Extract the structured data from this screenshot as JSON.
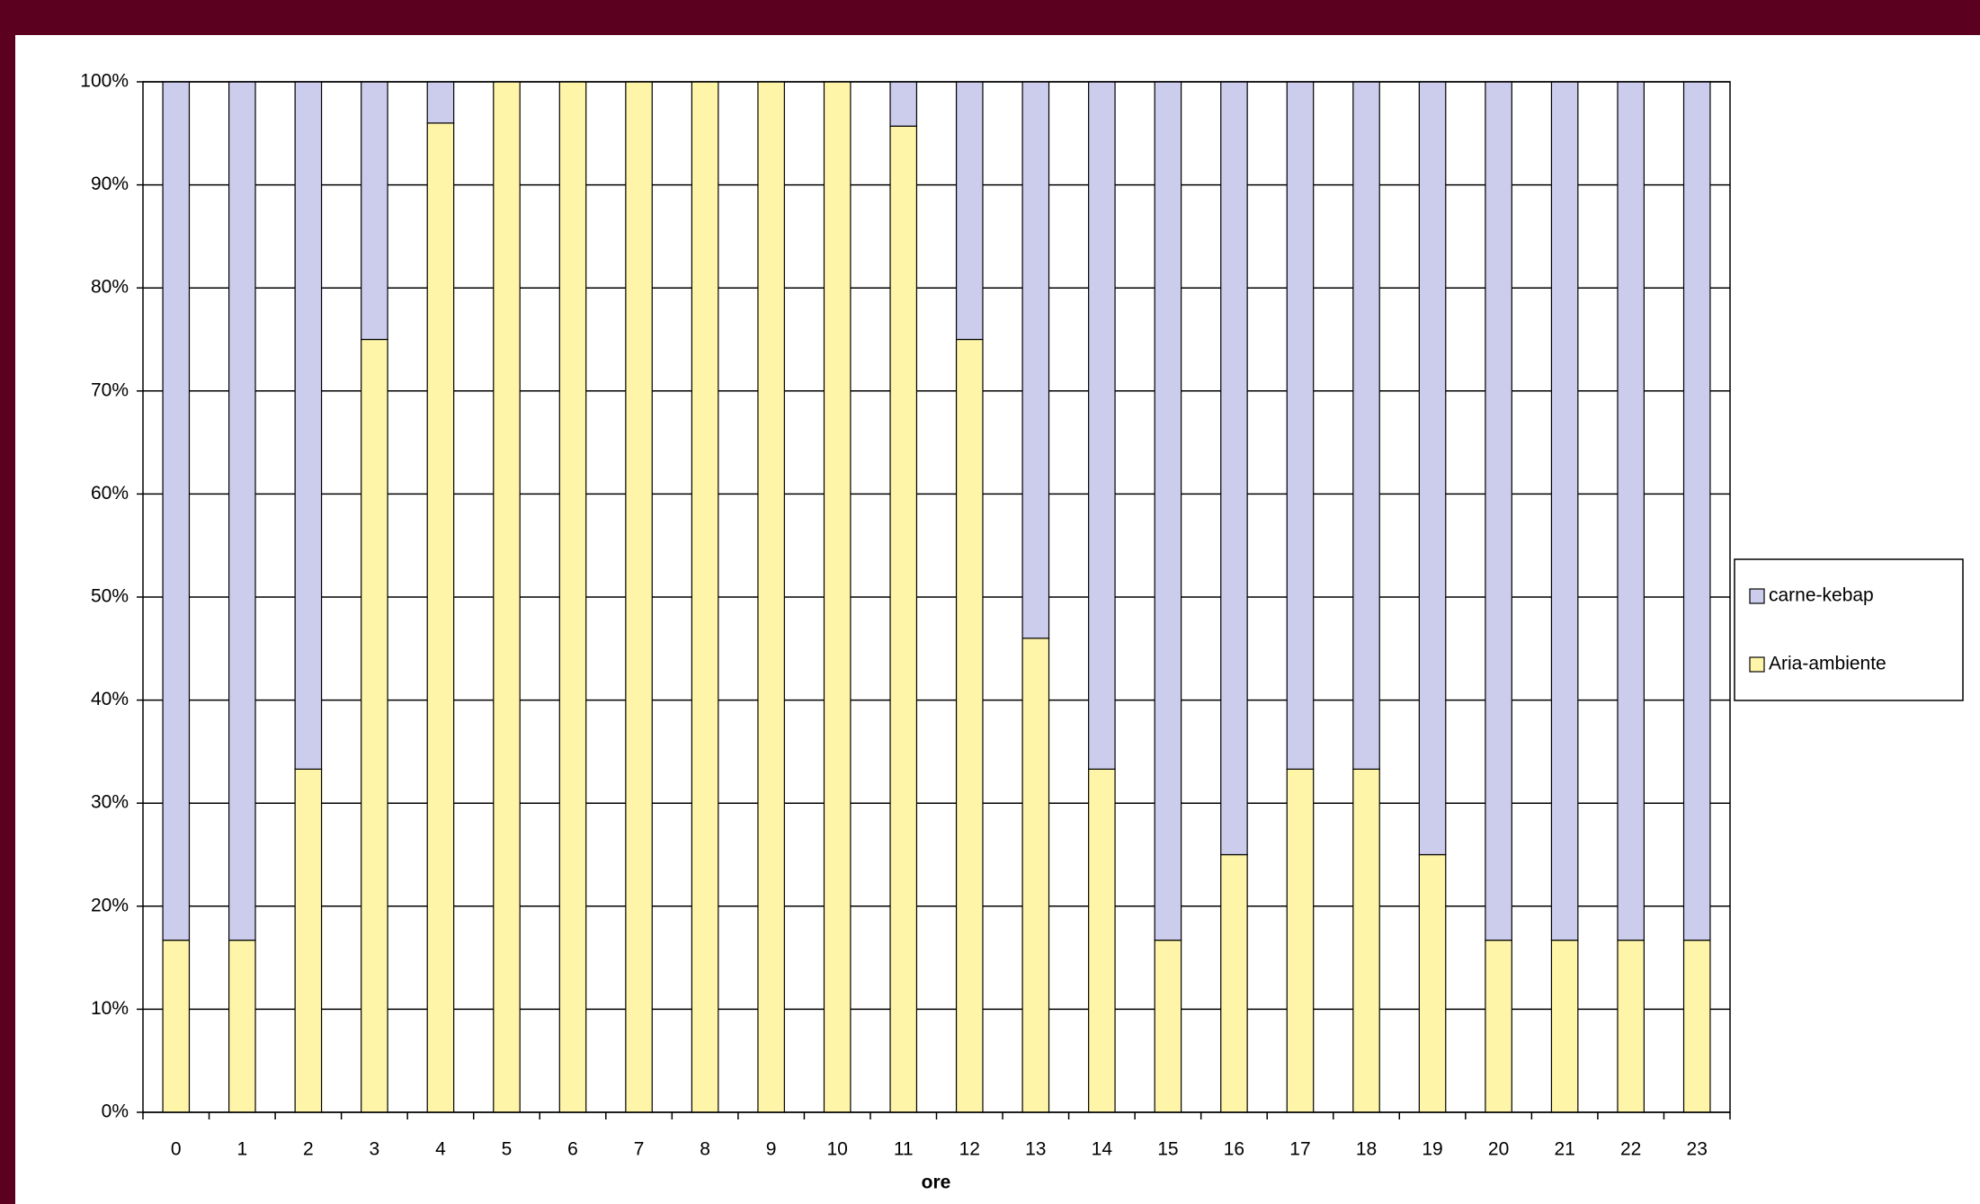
{
  "chart_data": {
    "type": "stacked_bar",
    "x_label": "ore",
    "categories": [
      "0",
      "1",
      "2",
      "3",
      "4",
      "5",
      "6",
      "7",
      "8",
      "9",
      "10",
      "11",
      "12",
      "13",
      "14",
      "15",
      "16",
      "17",
      "18",
      "19",
      "20",
      "21",
      "22",
      "23"
    ],
    "series": [
      {
        "name": "carne-kebap",
        "color": "#ccccec",
        "values": [
          83.3,
          83.3,
          66.7,
          25,
          4,
          0,
          0,
          0,
          0,
          0,
          0,
          4.3,
          25,
          54,
          66.7,
          83.3,
          75,
          66.7,
          66.7,
          75,
          83.3,
          83.3,
          83.3,
          83.3
        ]
      },
      {
        "name": "Aria-ambiente",
        "color": "#fff5a8",
        "values": [
          16.7,
          16.7,
          33.3,
          75,
          96,
          100,
          100,
          100,
          100,
          100,
          100,
          95.7,
          75,
          46,
          33.3,
          16.7,
          25,
          33.3,
          33.3,
          25,
          16.7,
          16.7,
          16.7,
          16.7
        ]
      }
    ],
    "ylim": [
      0,
      100
    ],
    "yticks": [
      {
        "value": 0,
        "label": "0%"
      },
      {
        "value": 10,
        "label": "10%"
      },
      {
        "value": 20,
        "label": "20%"
      },
      {
        "value": 30,
        "label": "30%"
      },
      {
        "value": 40,
        "label": "40%"
      },
      {
        "value": 50,
        "label": "50%"
      },
      {
        "value": 60,
        "label": "60%"
      },
      {
        "value": 70,
        "label": "70%"
      },
      {
        "value": 80,
        "label": "80%"
      },
      {
        "value": 90,
        "label": "90%"
      },
      {
        "value": 100,
        "label": "100%"
      }
    ],
    "grid": true,
    "legend": "right"
  }
}
